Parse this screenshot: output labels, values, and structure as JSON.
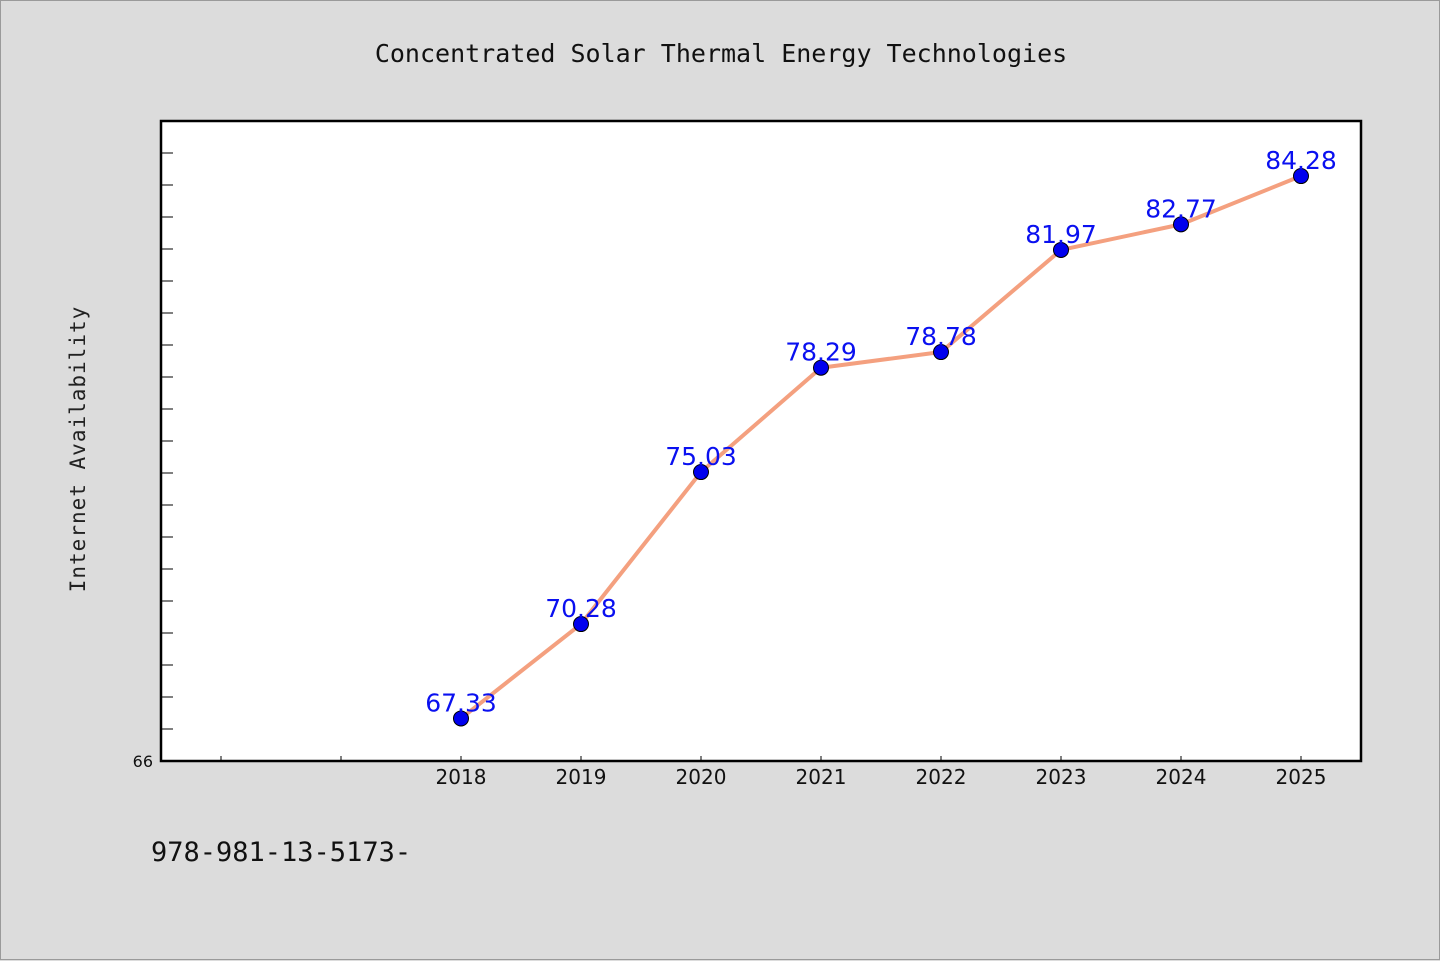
{
  "chart_data": {
    "type": "line",
    "title": "Concentrated Solar Thermal Energy Technologies",
    "xlabel": "",
    "ylabel": "Internet Availability",
    "x": [
      "2018",
      "2019",
      "2020",
      "2021",
      "2022",
      "2023",
      "2024",
      "2025"
    ],
    "series": [
      {
        "values": [
          67.33,
          70.28,
          75.03,
          78.29,
          78.78,
          81.97,
          82.77,
          84.28
        ],
        "data_labels": [
          "67.33",
          "70.28",
          "75.03",
          "78.29",
          "78.78",
          "81.97",
          "82.77",
          "84.28"
        ]
      }
    ],
    "ylim": [
      66,
      86
    ],
    "y_tick_labels": [
      "66"
    ],
    "grid": false,
    "legend": "none",
    "line_color": "#f4a07f",
    "marker_color": "#0000ee",
    "label_color": "#0a10f0"
  },
  "footer_note": "978-981-13-5173-"
}
